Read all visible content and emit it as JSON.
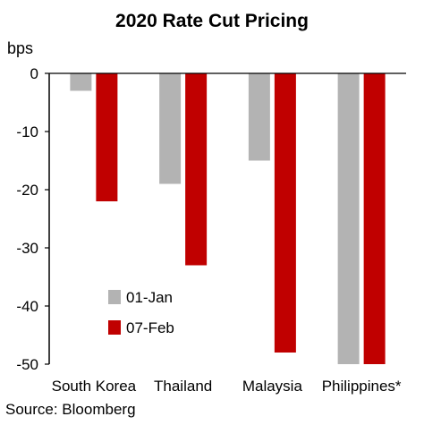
{
  "chart_data": {
    "type": "bar",
    "title": "2020 Rate Cut Pricing",
    "ylabel": "bps",
    "ylim": [
      -50,
      0
    ],
    "yticks": [
      0,
      -10,
      -20,
      -30,
      -40,
      -50
    ],
    "categories": [
      "South Korea",
      "Thailand",
      "Malaysia",
      "Philippines*"
    ],
    "series": [
      {
        "name": "01-Jan",
        "color": "#B3B3B3",
        "values": [
          -3,
          -19,
          -15,
          -50
        ]
      },
      {
        "name": "07-Feb",
        "color": "#C00000",
        "values": [
          -22,
          -33,
          -48,
          -50
        ]
      }
    ],
    "legend_position": "lower-left inside plot",
    "grid": false
  },
  "source": "Source: Bloomberg"
}
